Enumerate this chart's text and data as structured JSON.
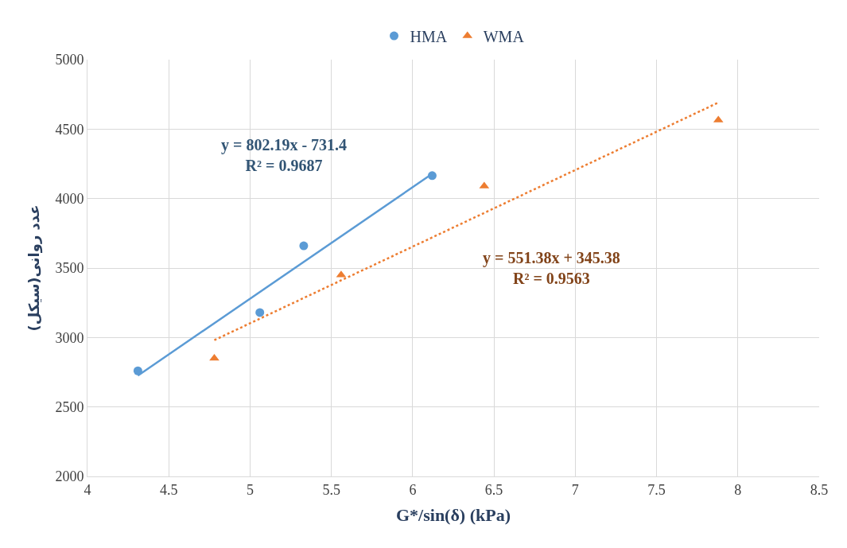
{
  "chart_data": {
    "type": "scatter",
    "xlabel": "G*/sin(δ) (kPa)",
    "ylabel": "عدد روانی(سیکل)",
    "xlim": [
      4,
      8.5
    ],
    "xticks": [
      4,
      4.5,
      5,
      5.5,
      6,
      6.5,
      7,
      7.5,
      8,
      8.5
    ],
    "ylim": [
      2000,
      5000
    ],
    "yticks": [
      2000,
      2500,
      3000,
      3500,
      4000,
      4500,
      5000
    ],
    "grid": true,
    "legend": "top",
    "series": [
      {
        "name": "HMA",
        "color": "#5b9bd5",
        "marker": "circle",
        "x": [
          4.31,
          5.06,
          5.33,
          6.12
        ],
        "values": [
          2760,
          3180,
          3660,
          4165
        ]
      },
      {
        "name": "WMA",
        "color": "#ed7d31",
        "marker": "triangle",
        "x": [
          4.78,
          5.56,
          6.44,
          7.88
        ],
        "values": [
          2850,
          3450,
          4090,
          4565
        ]
      },
      {
        "type": "line",
        "color": "#5b9bd5",
        "line_style": "solid",
        "x": [
          4.31,
          6.12
        ],
        "values": [
          2726,
          4178
        ]
      },
      {
        "type": "line",
        "color": "#ed7d31",
        "line_style": "dotted",
        "x": [
          4.78,
          7.88
        ],
        "values": [
          2981,
          4691
        ]
      }
    ],
    "annotations": [
      "y = 802.19x - 731.4\nR² = 0.9687",
      "y = 551.38x + 345.38\nR² = 0.9563"
    ]
  }
}
